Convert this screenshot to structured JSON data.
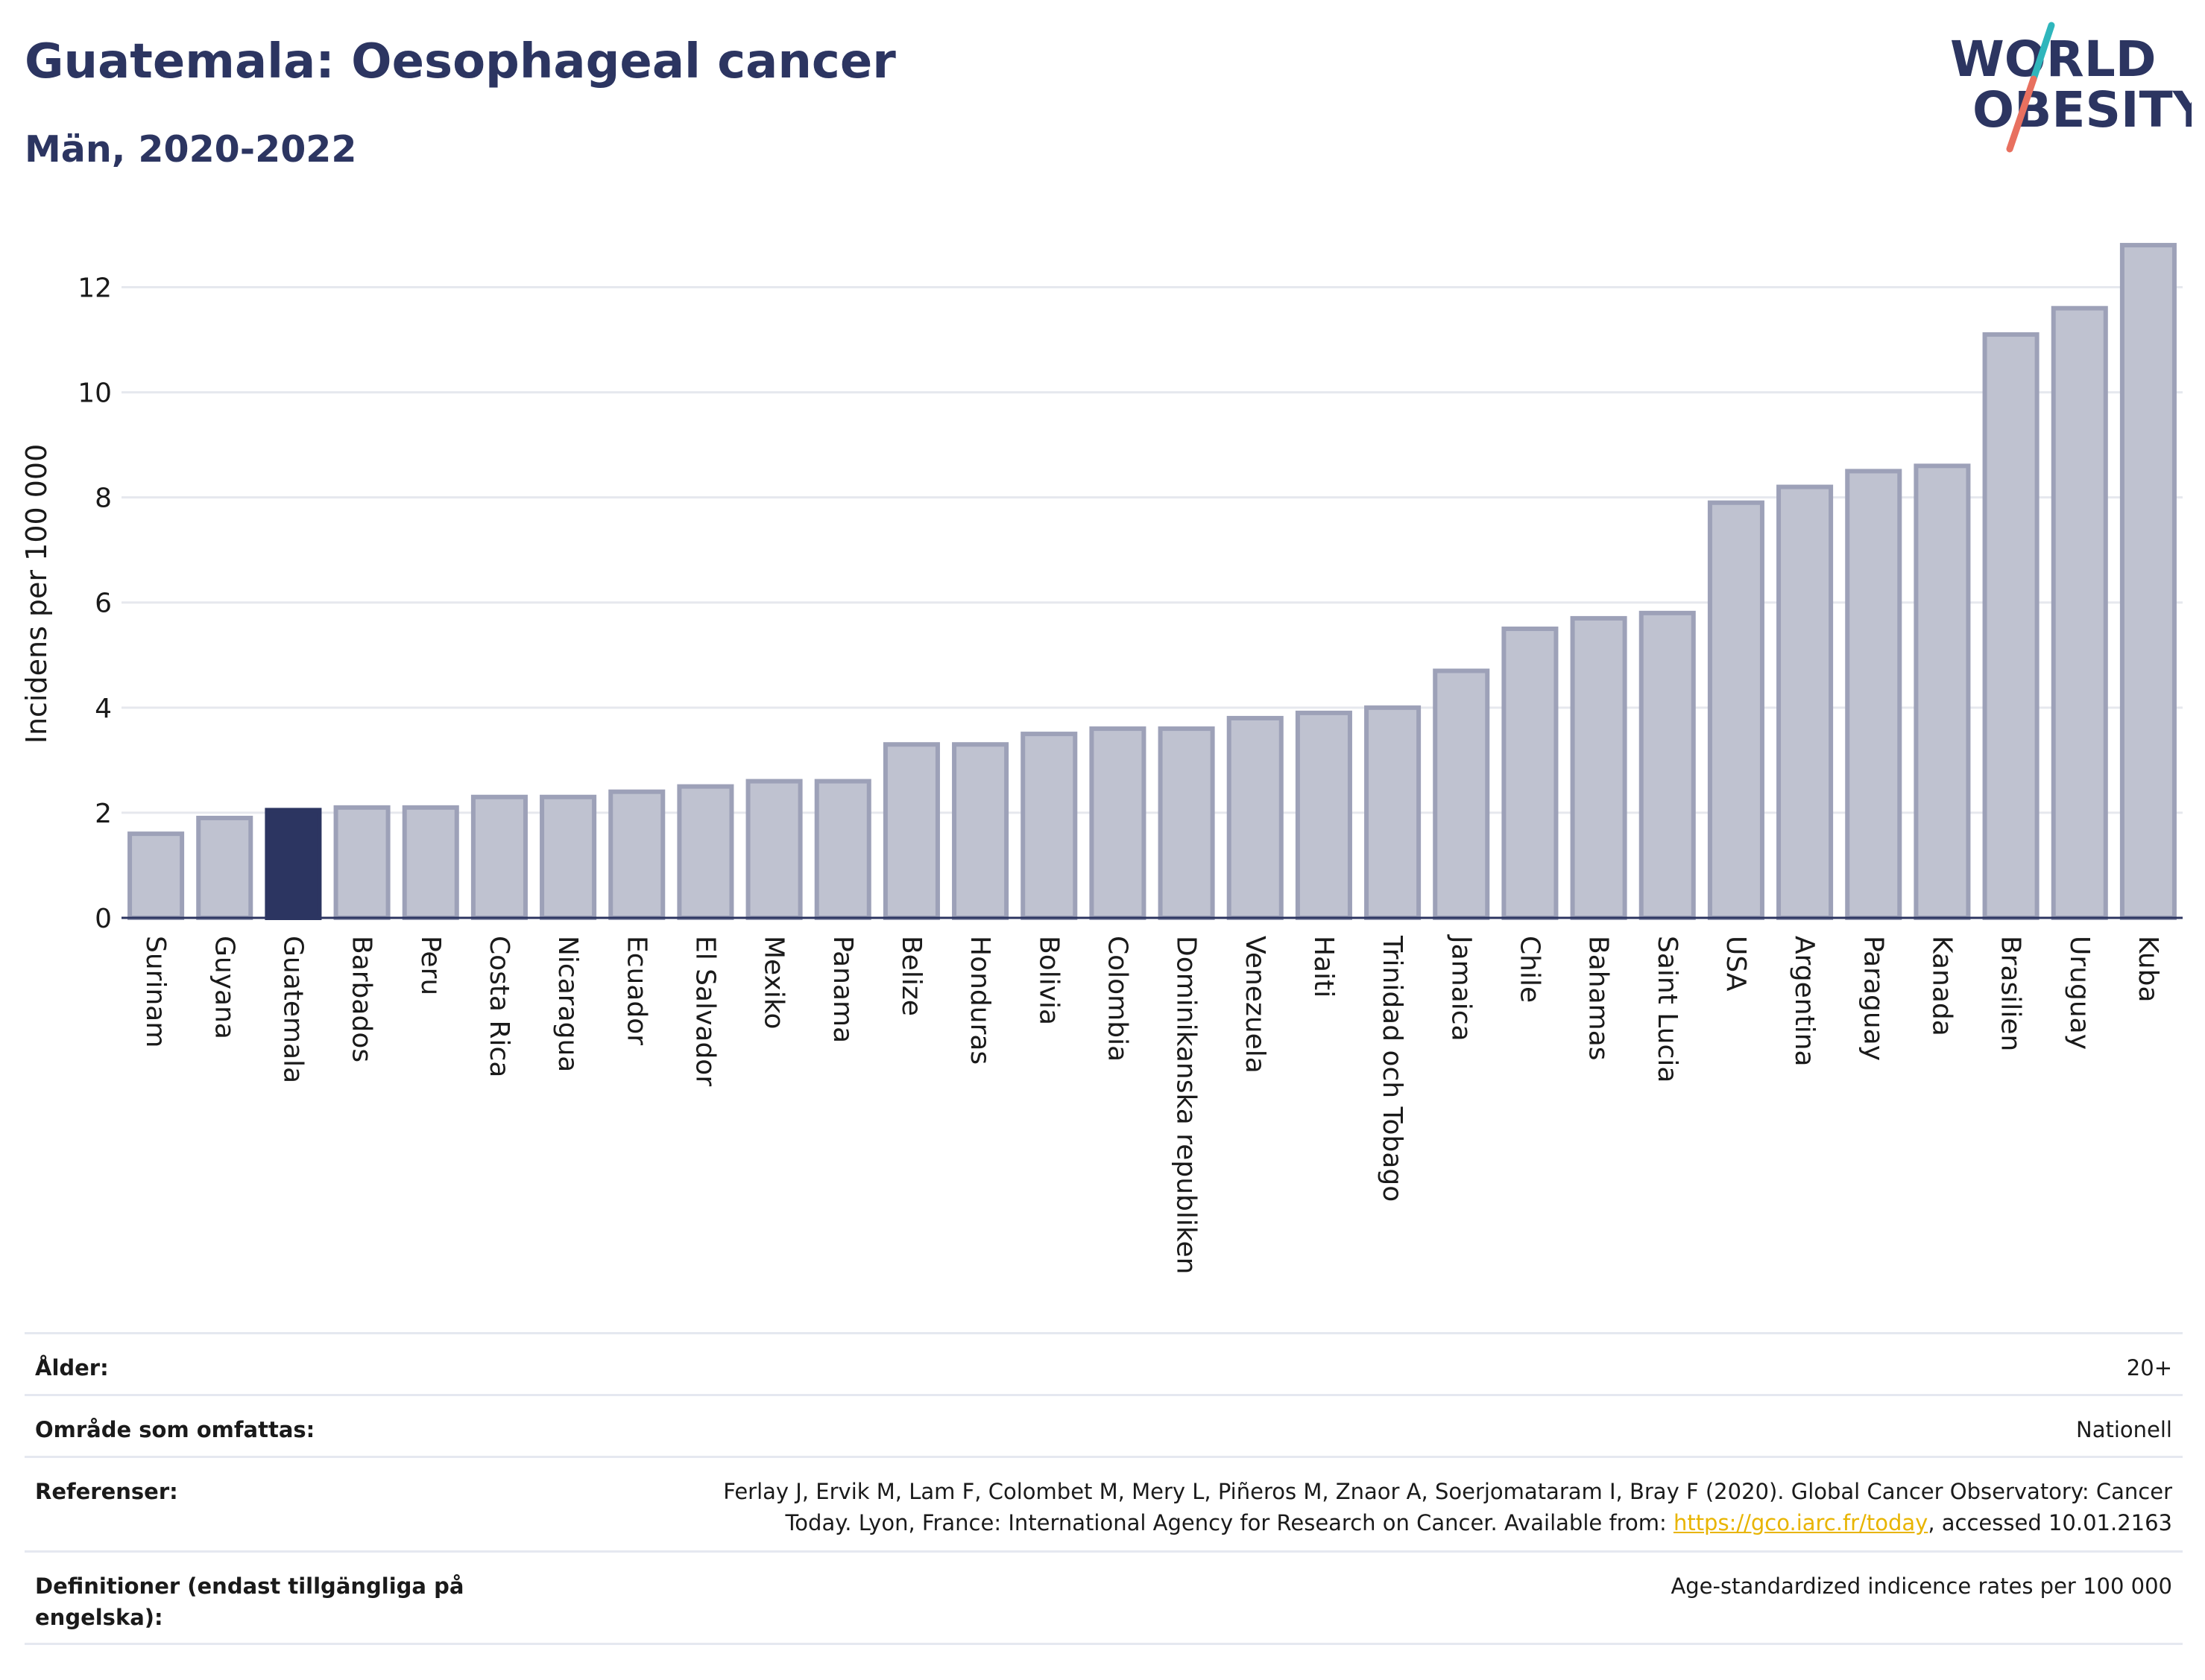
{
  "header": {
    "title": "Guatemala: Oesophageal cancer",
    "subtitle": "Män, 2020-2022"
  },
  "logo": {
    "line1": "WORLD",
    "line2": "OBESITY",
    "icon": "slash-accent"
  },
  "colors": {
    "title": "#2c3561",
    "bar": "#bfc2d0",
    "bar_edge": "#9da1b8",
    "highlight": "#2c3561",
    "grid": "#e6e8ee",
    "axis": "#2c3561",
    "logo_slash_top": "#2fb6bc",
    "logo_slash_bottom": "#e8705f",
    "link": "#e8b400"
  },
  "chart_data": {
    "type": "bar",
    "title": "",
    "xlabel": "",
    "ylabel": "Incidens per 100 000",
    "ylim": [
      0,
      12.9
    ],
    "yticks": [
      0,
      2,
      4,
      6,
      8,
      10,
      12
    ],
    "grid": true,
    "highlight": "Guatemala",
    "categories": [
      "Surinam",
      "Guyana",
      "Guatemala",
      "Barbados",
      "Peru",
      "Costa Rica",
      "Nicaragua",
      "Ecuador",
      "El Salvador",
      "Mexiko",
      "Panama",
      "Belize",
      "Honduras",
      "Bolivia",
      "Colombia",
      "Dominikanska republiken",
      "Venezuela",
      "Haiti",
      "Trinidad och Tobago",
      "Jamaica",
      "Chile",
      "Bahamas",
      "Saint Lucia",
      "USA",
      "Argentina",
      "Paraguay",
      "Kanada",
      "Brasilien",
      "Uruguay",
      "Kuba"
    ],
    "values": [
      1.6,
      1.9,
      2.05,
      2.1,
      2.1,
      2.3,
      2.3,
      2.4,
      2.5,
      2.6,
      2.6,
      3.3,
      3.3,
      3.5,
      3.6,
      3.6,
      3.8,
      3.9,
      4.0,
      4.7,
      5.5,
      5.7,
      5.8,
      7.9,
      8.2,
      8.5,
      8.6,
      11.1,
      11.6,
      12.8
    ]
  },
  "meta": {
    "age_label": "Ålder:",
    "age_value": "20+",
    "area_label": "Område som omfattas:",
    "area_value": "Nationell",
    "refs_label": "Referenser:",
    "refs_line1": "Ferlay J, Ervik M, Lam F, Colombet M, Mery L, Piñeros M, Znaor A, Soerjomataram I, Bray F (2020). Global Cancer Observatory: Cancer",
    "refs_line2_pre": "Today. Lyon, France: International Agency for Research on Cancer. Available from: ",
    "refs_link": "https://gco.iarc.fr/today",
    "refs_line2_post": ", accessed 10.01.2163",
    "defs_label": "Definitioner (endast tillgängliga på engelska):",
    "defs_value": "Age-standardized indicence rates per 100 000"
  }
}
